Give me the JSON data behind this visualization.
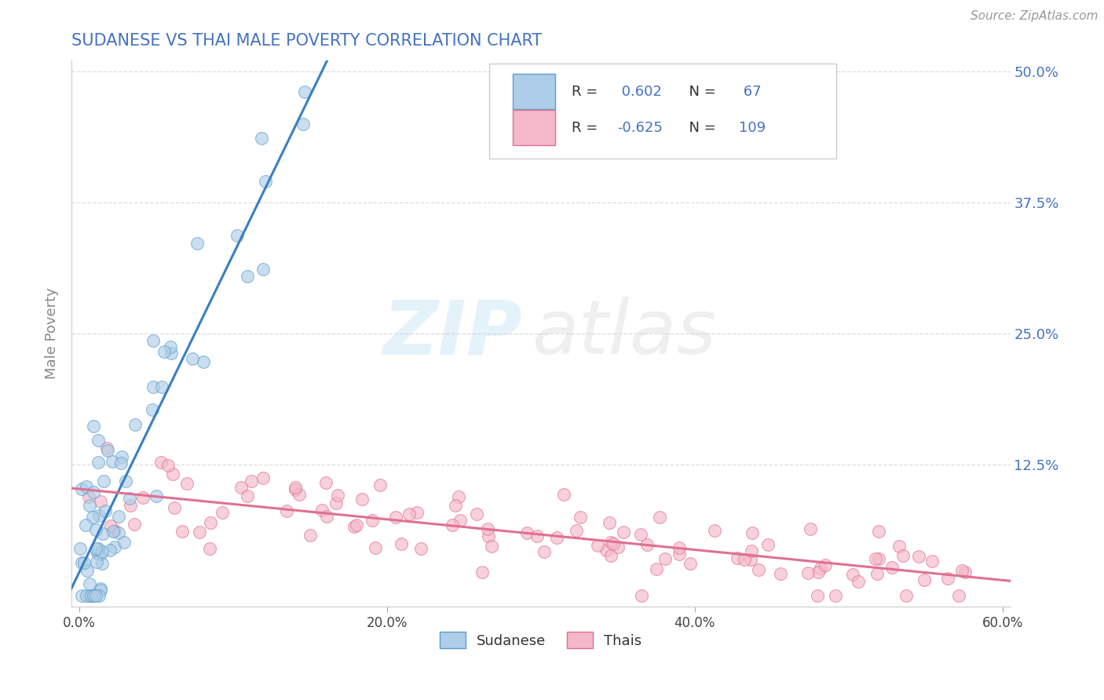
{
  "title": "SUDANESE VS THAI MALE POVERTY CORRELATION CHART",
  "source": "Source: ZipAtlas.com",
  "ylabel": "Male Poverty",
  "xlim": [
    -0.005,
    0.605
  ],
  "ylim": [
    -0.01,
    0.51
  ],
  "xtick_labels": [
    "0.0%",
    "20.0%",
    "40.0%",
    "60.0%"
  ],
  "xtick_vals": [
    0.0,
    0.2,
    0.4,
    0.6
  ],
  "ytick_labels": [
    "12.5%",
    "25.0%",
    "37.5%",
    "50.0%"
  ],
  "ytick_vals": [
    0.125,
    0.25,
    0.375,
    0.5
  ],
  "sudanese_fill": "#aecde8",
  "sudanese_edge": "#5a9ec9",
  "thai_fill": "#f4b8c8",
  "thai_edge": "#e07090",
  "sudanese_line_color": "#3a7fc1",
  "thai_line_color": "#e07090",
  "sudanese_R": 0.602,
  "sudanese_N": 67,
  "thai_R": -0.625,
  "thai_N": 109,
  "background_color": "#ffffff",
  "grid_color": "#dddddd",
  "title_color": "#4472c4",
  "axis_label_color": "#888888",
  "right_tick_color": "#4472c4",
  "value_color": "#4472c4",
  "label_color": "#333333"
}
